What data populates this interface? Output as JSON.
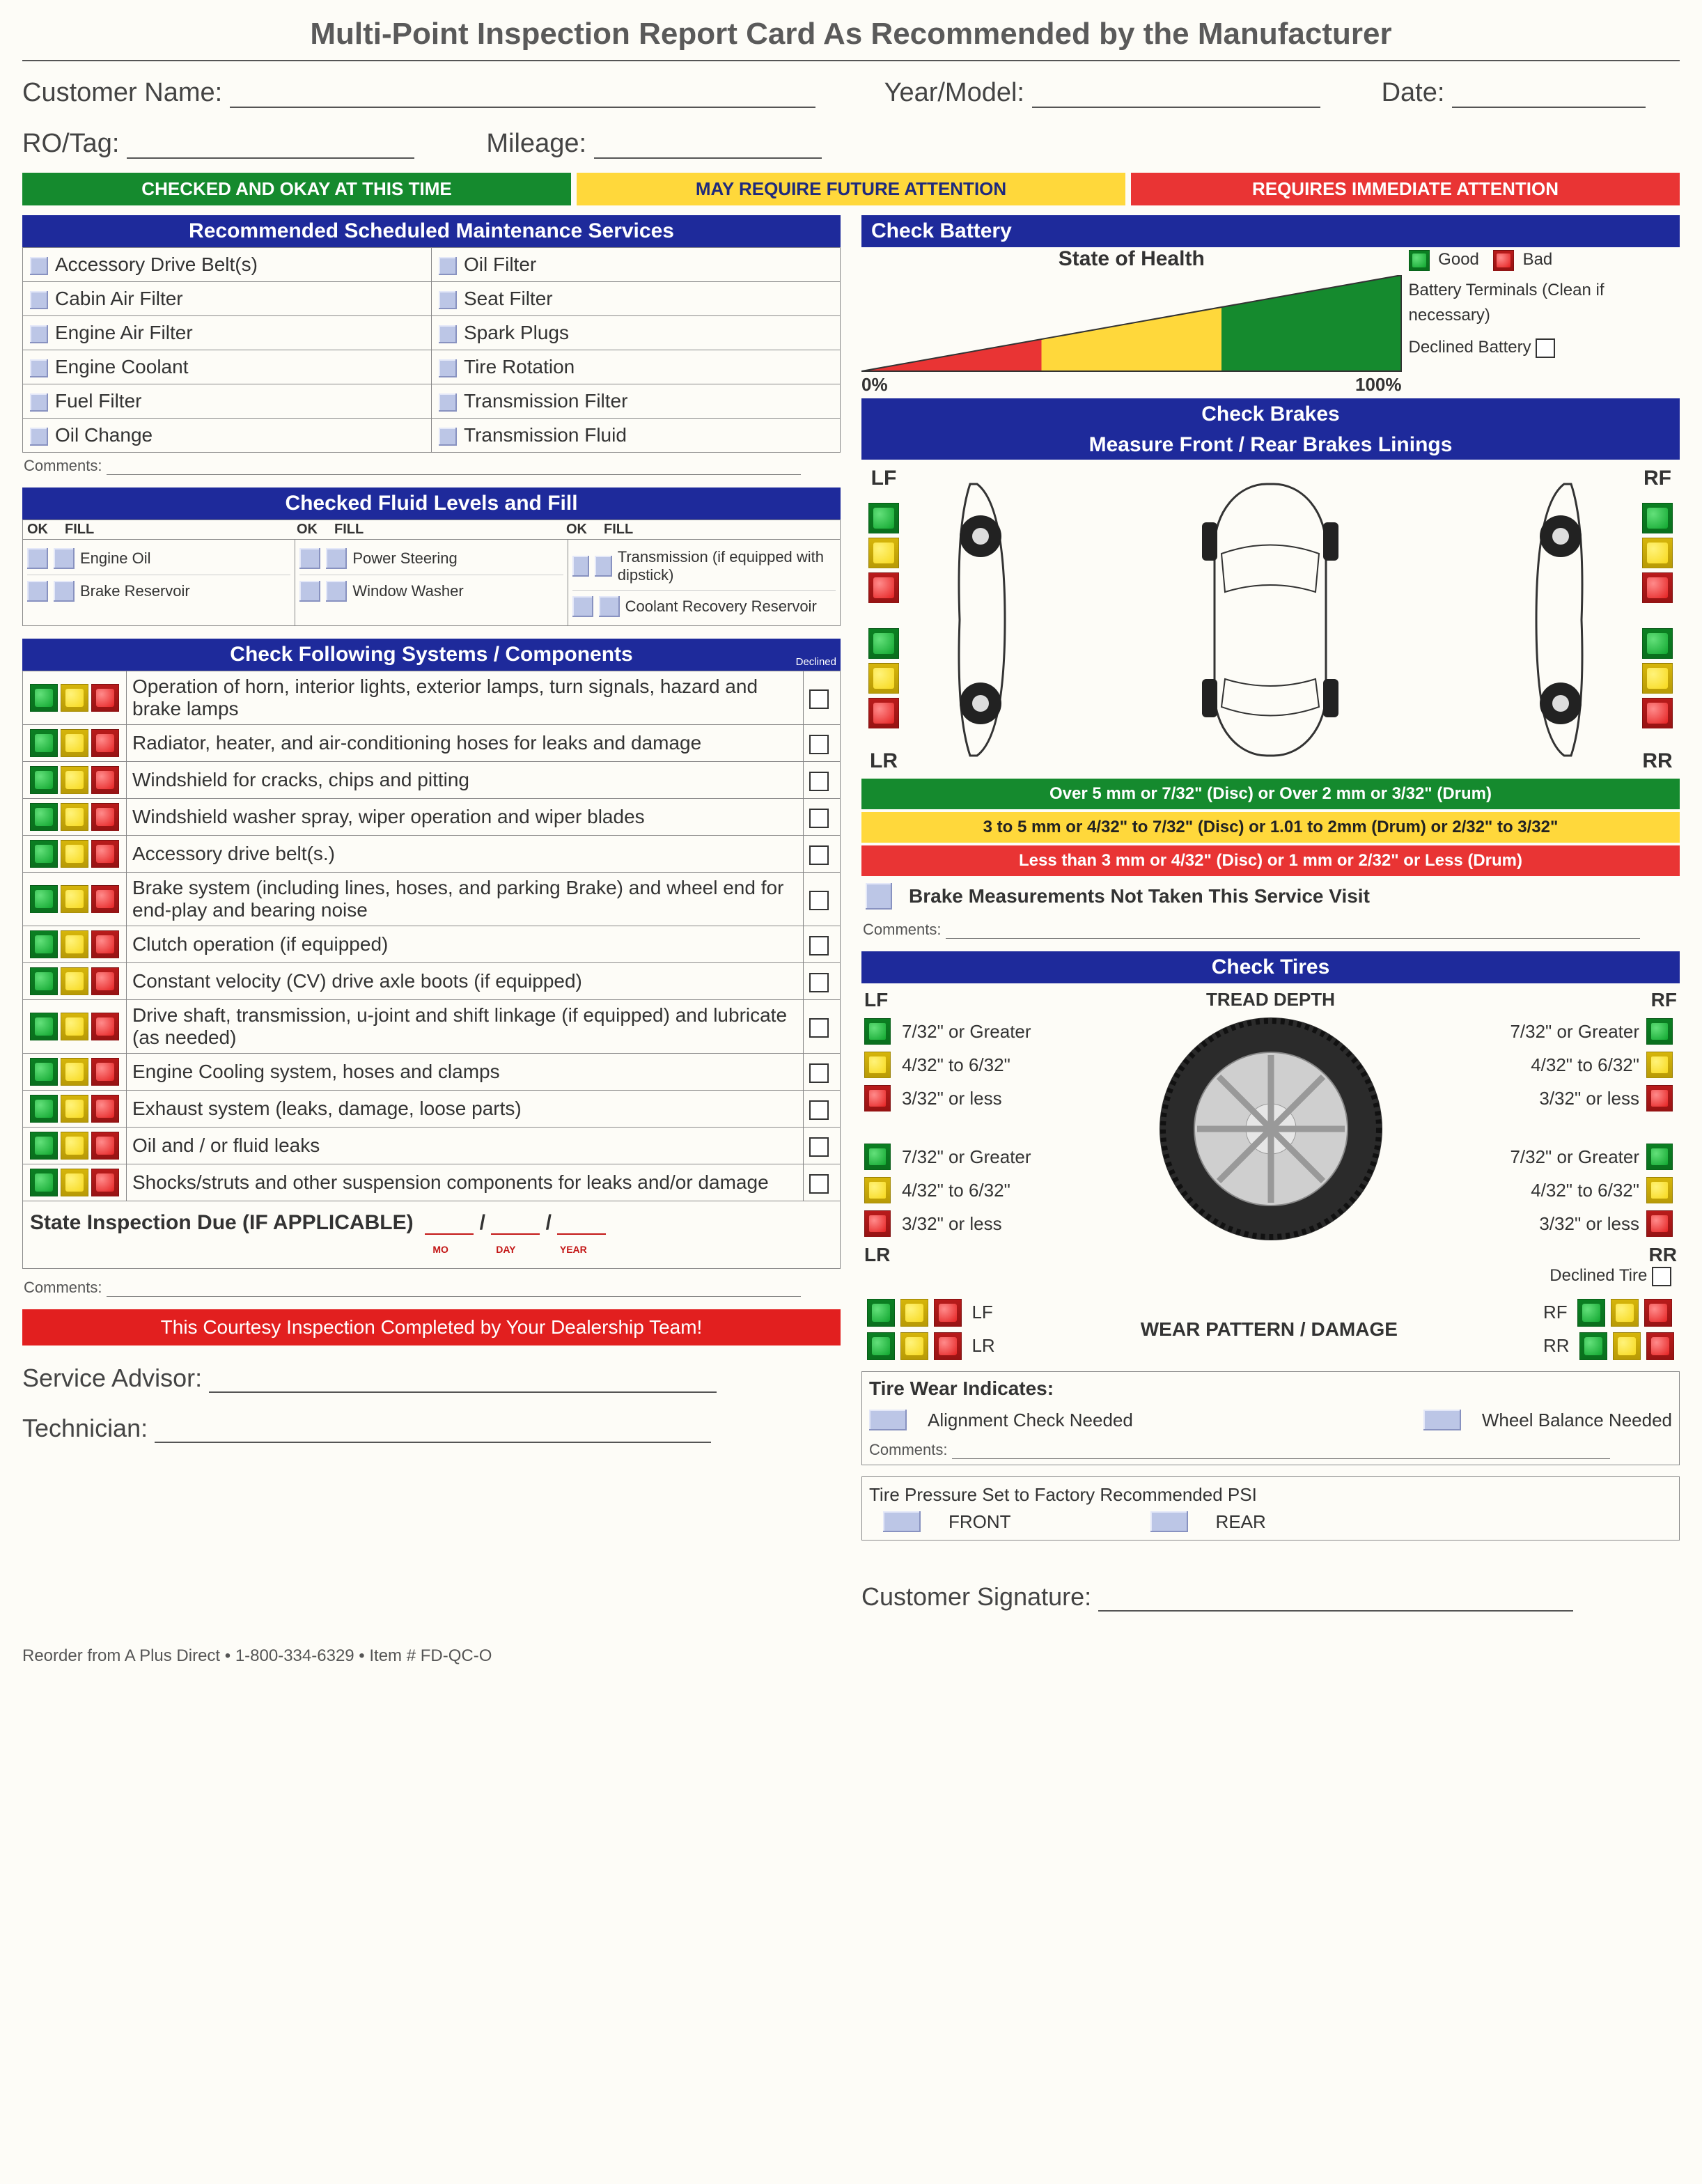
{
  "title": "Multi-Point Inspection Report Card As Recommended by the Manufacturer",
  "header": {
    "customer_name_label": "Customer Name:",
    "year_model_label": "Year/Model:",
    "date_label": "Date:",
    "ro_tag_label": "RO/Tag:",
    "mileage_label": "Mileage:"
  },
  "status_labels": {
    "ok": "CHECKED AND OKAY AT THIS TIME",
    "future": "MAY REQUIRE FUTURE ATTENTION",
    "immediate": "REQUIRES IMMEDIATE ATTENTION"
  },
  "colors": {
    "green": "#158a2e",
    "yellow": "#ffd83b",
    "red": "#e93434",
    "blue_header": "#1e2a9b",
    "checkbox_fill": "#bcc6e6"
  },
  "maintenance": {
    "header": "Recommended Scheduled Maintenance Services",
    "items_left": [
      "Accessory Drive Belt(s)",
      "Cabin Air Filter",
      "Engine Air Filter",
      "Engine Coolant",
      "Fuel Filter",
      "Oil Change"
    ],
    "items_right": [
      "Oil Filter",
      "Seat Filter",
      "Spark Plugs",
      "Tire Rotation",
      "Transmission Filter",
      "Transmission Fluid"
    ],
    "comments_label": "Comments:"
  },
  "fluids": {
    "header": "Checked Fluid Levels and Fill",
    "ok_label": "OK",
    "fill_label": "FILL",
    "col1": [
      "Engine Oil",
      "Brake Reservoir"
    ],
    "col2": [
      "Power Steering",
      "Window Washer"
    ],
    "col3": [
      "Transmission (if equipped with dipstick)",
      "Coolant Recovery Reservoir"
    ]
  },
  "systems": {
    "header": "Check Following Systems / Components",
    "declined_label": "Declined",
    "items": [
      "Operation of horn, interior lights, exterior lamps, turn signals, hazard and brake lamps",
      "Radiator, heater, and air-conditioning hoses for leaks and damage",
      "Windshield for cracks, chips and pitting",
      "Windshield washer spray, wiper operation and wiper blades",
      "Accessory drive belt(s.)",
      "Brake system (including lines, hoses, and parking Brake) and wheel end for end-play and bearing noise",
      "Clutch operation (if equipped)",
      "Constant velocity (CV) drive axle boots (if equipped)",
      "Drive shaft, transmission, u-joint and shift linkage (if equipped) and lubricate (as needed)",
      "Engine Cooling system, hoses and clamps",
      "Exhaust system (leaks, damage, loose parts)",
      "Oil and / or fluid leaks",
      "Shocks/struts and other suspension components for leaks and/or damage"
    ],
    "state_inspection_label": "State Inspection Due (IF APPLICABLE)",
    "mo": "MO",
    "day": "DAY",
    "year": "YEAR",
    "comments_label": "Comments:"
  },
  "courtesy_banner": "This Courtesy Inspection Completed by Your Dealership Team!",
  "battery": {
    "header": "Check Battery",
    "state_title": "State of Health",
    "good": "Good",
    "bad": "Bad",
    "terminals": "Battery Terminals (Clean if necessary)",
    "declined": "Declined Battery",
    "pct0": "0%",
    "pct100": "100%"
  },
  "brakes": {
    "header": "Check Brakes",
    "subtitle": "Measure Front / Rear Brakes Linings",
    "lf": "LF",
    "rf": "RF",
    "lr": "LR",
    "rr": "RR",
    "band_green": "Over 5 mm or 7/32\" (Disc) or Over 2 mm or 3/32\" (Drum)",
    "band_yellow": "3 to 5 mm or 4/32\" to 7/32\" (Disc) or 1.01 to 2mm (Drum) or 2/32\" to 3/32\"",
    "band_red": "Less than 3 mm or 4/32\" (Disc) or 1 mm or 2/32\" or Less (Drum)",
    "not_taken": "Brake Measurements Not Taken This Service Visit",
    "comments_label": "Comments:"
  },
  "tires": {
    "header": "Check Tires",
    "tread_depth": "TREAD DEPTH",
    "lf": "LF",
    "rf": "RF",
    "lr": "LR",
    "rr": "RR",
    "t1": "7/32\" or Greater",
    "t2": "4/32\" to 6/32\"",
    "t3": "3/32\" or less",
    "declined": "Declined Tire",
    "wear_title": "WEAR PATTERN / DAMAGE",
    "indicates_title": "Tire Wear Indicates:",
    "alignment": "Alignment Check Needed",
    "balance": "Wheel Balance Needed",
    "comments_label": "Comments:",
    "psi_title": "Tire Pressure Set to Factory Recommended PSI",
    "front": "FRONT",
    "rear": "REAR"
  },
  "signatures": {
    "service_advisor": "Service Advisor:",
    "technician": "Technician:",
    "customer_sig": "Customer Signature:"
  },
  "footer": "Reorder from A Plus Direct • 1-800-334-6329 • Item # FD-QC-O"
}
